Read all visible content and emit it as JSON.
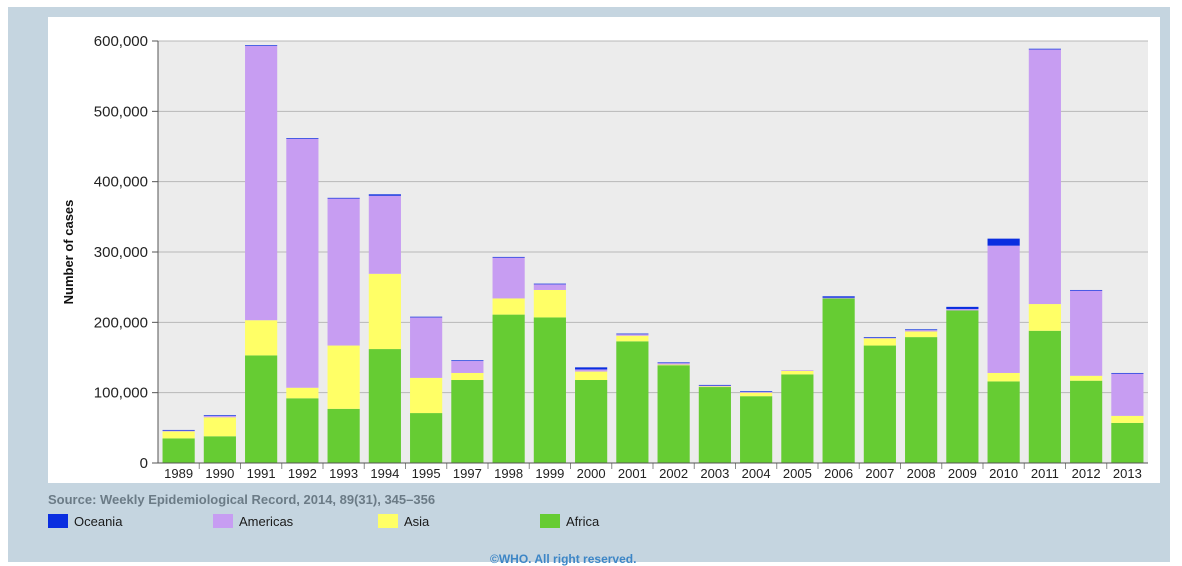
{
  "source": "Source: Weekly Epidemiological Record, 2014, 89(31), 345–356",
  "copyright": "©WHO. All right reserved.",
  "colors": {
    "Oceania": "#0a2ee0",
    "Americas": "#c79df2",
    "Asia": "#ffff66",
    "Africa": "#66cc33"
  },
  "chart_data": {
    "type": "bar",
    "stacked": true,
    "ylabel": "Number of cases",
    "xlabel": "",
    "ylim": [
      0,
      600000
    ],
    "yticks": [
      "0",
      "100,000",
      "200,000",
      "300,000",
      "400,000",
      "500,000",
      "600,000"
    ],
    "grid": true,
    "legend_position": "bottom",
    "categories": [
      "1989",
      "1990",
      "1991",
      "1992",
      "1993",
      "1994",
      "1995",
      "1997",
      "1998",
      "1999",
      "2000",
      "2001",
      "2002",
      "2003",
      "2004",
      "2005",
      "2006",
      "2007",
      "2008",
      "2009",
      "2010",
      "2011",
      "2012",
      "2013"
    ],
    "series": [
      {
        "name": "Africa",
        "values": [
          35000,
          38000,
          153000,
          92000,
          77000,
          162000,
          71000,
          118000,
          211000,
          207000,
          118000,
          173000,
          139000,
          108000,
          95000,
          126000,
          234000,
          167000,
          179000,
          217000,
          116000,
          188000,
          117000,
          57000
        ]
      },
      {
        "name": "Asia",
        "values": [
          10000,
          27000,
          50000,
          15000,
          90000,
          107000,
          50000,
          10000,
          23000,
          39000,
          12000,
          8000,
          1000,
          1000,
          5000,
          5000,
          0,
          10000,
          8000,
          0,
          12000,
          38000,
          7000,
          10000
        ]
      },
      {
        "name": "Americas",
        "values": [
          1000,
          2000,
          390000,
          354000,
          209000,
          111000,
          86000,
          17000,
          58000,
          8000,
          3000,
          2000,
          2000,
          1000,
          1000,
          1000,
          1000,
          1000,
          2000,
          2000,
          181000,
          362000,
          121000,
          60000
        ]
      },
      {
        "name": "Oceania",
        "values": [
          1000,
          1000,
          1000,
          1000,
          1000,
          2000,
          1000,
          1000,
          1000,
          1000,
          3000,
          1000,
          1000,
          1000,
          1000,
          0,
          2000,
          1000,
          1000,
          3000,
          10000,
          1000,
          1000,
          1000
        ]
      }
    ]
  }
}
